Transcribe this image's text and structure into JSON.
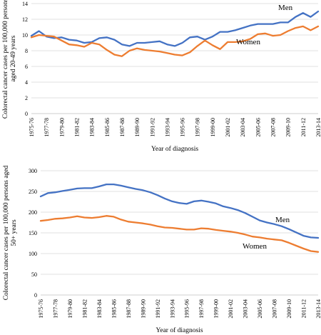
{
  "chart_data": [
    {
      "type": "line",
      "ylabel_lines": [
        "Colorectal cancer cases per 100,000 persons",
        "aged 20-49 years"
      ],
      "xlabel": "Year of diagnosis",
      "ylim": [
        0,
        14
      ],
      "yticks": [
        0,
        2,
        4,
        6,
        8,
        10,
        12,
        14
      ],
      "grid": true,
      "categories": [
        "1975-76",
        "1976-77",
        "1977-78",
        "1978-79",
        "1979-80",
        "1980-81",
        "1981-82",
        "1982-83",
        "1983-84",
        "1984-85",
        "1985-86",
        "1986-87",
        "1987-88",
        "1988-89",
        "1989-90",
        "1990-91",
        "1991-92",
        "1992-93",
        "1993-94",
        "1994-95",
        "1995-96",
        "1996-97",
        "1997-98",
        "1998-99",
        "1999-00",
        "2000-01",
        "2001-02",
        "2002-03",
        "2003-04",
        "2004-05",
        "2005-06",
        "2006-07",
        "2007-08",
        "2008-09",
        "2009-10",
        "2010-11",
        "2011-12",
        "2012-13",
        "2013-14"
      ],
      "xtick_labels": [
        "1975-76",
        "1977-78",
        "1979-80",
        "1981-82",
        "1983-84",
        "1985-86",
        "1987-88",
        "1989-90",
        "1991-92",
        "1993-94",
        "1995-96",
        "1997-98",
        "1999-00",
        "2001-02",
        "2003-04",
        "2005-06",
        "2007-08",
        "2009-10",
        "2011-12",
        "2013-14"
      ],
      "series": [
        {
          "name": "Men",
          "color": "#4472C4",
          "values": [
            9.9,
            10.5,
            9.8,
            9.6,
            9.7,
            9.4,
            9.3,
            9.0,
            9.1,
            9.6,
            9.7,
            9.4,
            8.8,
            8.6,
            9.0,
            9.0,
            9.1,
            9.2,
            8.8,
            8.6,
            9.0,
            9.7,
            9.8,
            9.4,
            9.8,
            10.4,
            10.4,
            10.6,
            10.9,
            11.2,
            11.4,
            11.4,
            11.4,
            11.6,
            11.6,
            12.3,
            12.8,
            12.3,
            13.0
          ]
        },
        {
          "name": "Women",
          "color": "#ED7D31",
          "values": [
            9.7,
            10.0,
            9.9,
            9.8,
            9.3,
            8.8,
            8.7,
            8.5,
            9.0,
            8.8,
            8.1,
            7.5,
            7.3,
            8.0,
            8.3,
            8.1,
            8.0,
            7.9,
            7.7,
            7.5,
            7.4,
            7.8,
            8.6,
            9.3,
            8.7,
            8.2,
            9.1,
            9.1,
            9.2,
            9.5,
            10.1,
            10.2,
            9.9,
            10.0,
            10.5,
            10.9,
            11.1,
            10.6,
            11.1
          ]
        }
      ]
    },
    {
      "type": "line",
      "ylabel_lines": [
        "Colorectal cancer cases per 100,000 persons aged",
        "50+ years"
      ],
      "xlabel": "Year of diagnosis",
      "ylim": [
        0,
        300
      ],
      "yticks": [
        0,
        50,
        100,
        150,
        200,
        250,
        300
      ],
      "grid": true,
      "categories": [
        "1975-76",
        "1976-77",
        "1977-78",
        "1978-79",
        "1979-80",
        "1980-81",
        "1981-82",
        "1982-83",
        "1983-84",
        "1984-85",
        "1985-86",
        "1986-87",
        "1987-88",
        "1988-89",
        "1989-90",
        "1990-91",
        "1991-92",
        "1992-93",
        "1993-94",
        "1994-95",
        "1995-96",
        "1996-97",
        "1997-98",
        "1998-99",
        "1999-00",
        "2000-01",
        "2001-02",
        "2002-03",
        "2003-04",
        "2004-05",
        "2005-06",
        "2006-07",
        "2007-08",
        "2008-09",
        "2009-10",
        "2010-11",
        "2011-12",
        "2012-13",
        "2013-14"
      ],
      "xtick_labels": [
        "1975-76",
        "1977-78",
        "1979-80",
        "1981-82",
        "1983-84",
        "1985-86",
        "1987-88",
        "1989-90",
        "1991-92",
        "1993-94",
        "1995-96",
        "1997-98",
        "1999-00",
        "2001-02",
        "2003-04",
        "2005-06",
        "2007-08",
        "2009-10",
        "2011-12",
        "2013-14"
      ],
      "series": [
        {
          "name": "Men",
          "color": "#4472C4",
          "values": [
            238,
            246,
            248,
            251,
            254,
            257,
            258,
            258,
            262,
            267,
            267,
            264,
            260,
            256,
            253,
            248,
            241,
            233,
            226,
            222,
            220,
            226,
            228,
            225,
            221,
            214,
            210,
            205,
            198,
            189,
            180,
            175,
            171,
            166,
            159,
            151,
            143,
            139,
            138
          ]
        },
        {
          "name": "Women",
          "color": "#ED7D31",
          "values": [
            179,
            181,
            184,
            185,
            187,
            190,
            187,
            186,
            188,
            191,
            189,
            182,
            177,
            175,
            173,
            170,
            166,
            163,
            162,
            160,
            158,
            158,
            161,
            160,
            157,
            155,
            153,
            150,
            146,
            141,
            139,
            136,
            134,
            132,
            126,
            119,
            112,
            106,
            104
          ]
        }
      ]
    }
  ]
}
